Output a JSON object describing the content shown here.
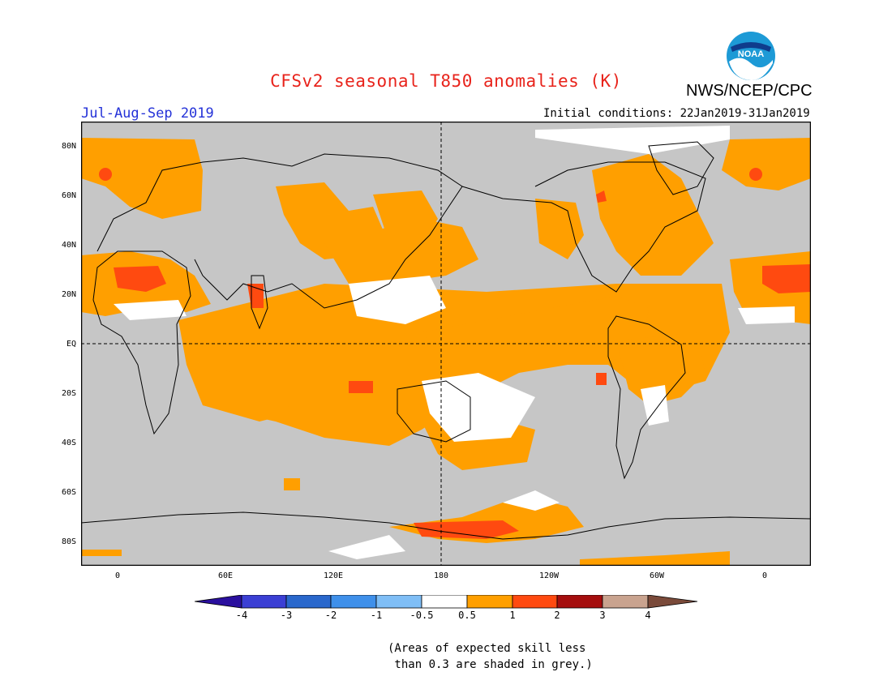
{
  "header": {
    "title": "CFSv2 seasonal T850 anomalies (K)",
    "agency": "NWS/NCEP/CPC",
    "logo_text": "NOAA",
    "period": "Jul-Aug-Sep 2019",
    "initial_conditions": "Initial conditions: 22Jan2019-31Jan2019"
  },
  "map": {
    "lat_labels": [
      "80N",
      "60N",
      "40N",
      "20N",
      "EQ",
      "20S",
      "40S",
      "60S",
      "80S"
    ],
    "lon_labels": [
      "0",
      "60E",
      "120E",
      "180",
      "120W",
      "60W",
      "0"
    ]
  },
  "colorbar": {
    "labels": [
      "-4",
      "-3",
      "-2",
      "-1",
      "-0.5",
      "0.5",
      "1",
      "2",
      "3",
      "4"
    ],
    "colors": [
      "#2a0f9e",
      "#3b3fd4",
      "#2a68cc",
      "#3f90ea",
      "#7fbef6",
      "#ffffff",
      "#ff9f00",
      "#ff4a10",
      "#a50e0e",
      "#c9a38f",
      "#7a4a3a"
    ]
  },
  "note": "(Areas of expected skill less\n than 0.3 are shaded in grey.)",
  "colors": {
    "grey": "#c6c6c6",
    "orange": "#ff9f00",
    "red": "#ff4a10",
    "title_red": "#e8231b",
    "period_blue": "#2432d8"
  }
}
